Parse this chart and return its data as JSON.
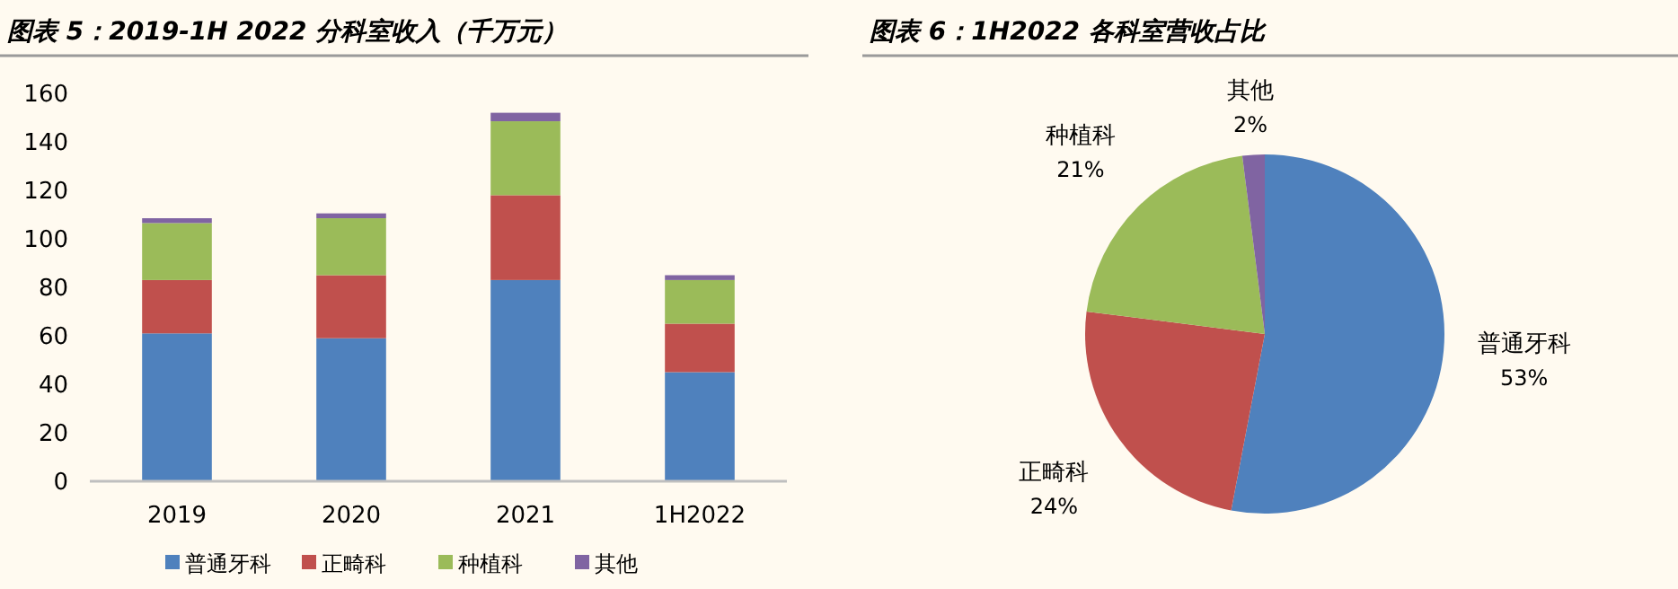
{
  "chart_data": [
    {
      "type": "bar",
      "title": "图表 5：2019-1H 2022 分科室收入（千万元）",
      "stacked": true,
      "categories": [
        "2019",
        "2020",
        "2021",
        "1H2022"
      ],
      "series": [
        {
          "name": "普通牙科",
          "color": "#4f81bd",
          "values": [
            61,
            59,
            83,
            45
          ]
        },
        {
          "name": "正畸科",
          "color": "#c0504d",
          "values": [
            22,
            26,
            35,
            20
          ]
        },
        {
          "name": "种植科",
          "color": "#9bbb59",
          "values": [
            23.5,
            23.5,
            30.5,
            18
          ]
        },
        {
          "name": "其他",
          "color": "#8064a2",
          "values": [
            2,
            2,
            3.5,
            2
          ]
        }
      ],
      "ylim": [
        0,
        160
      ],
      "yticks": [
        0,
        20,
        40,
        60,
        80,
        100,
        120,
        140,
        160
      ],
      "grid": false,
      "legend": "bottom"
    },
    {
      "type": "pie",
      "title": "图表 6：1H2022 各科室营收占比",
      "categories": [
        "普通牙科",
        "正畸科",
        "种植科",
        "其他"
      ],
      "values": [
        53,
        24,
        21,
        2
      ],
      "colors": [
        "#4f81bd",
        "#c0504d",
        "#9bbb59",
        "#8064a2"
      ],
      "value_labels": [
        "53%",
        "24%",
        "21%",
        "2%"
      ],
      "legend": false
    }
  ]
}
